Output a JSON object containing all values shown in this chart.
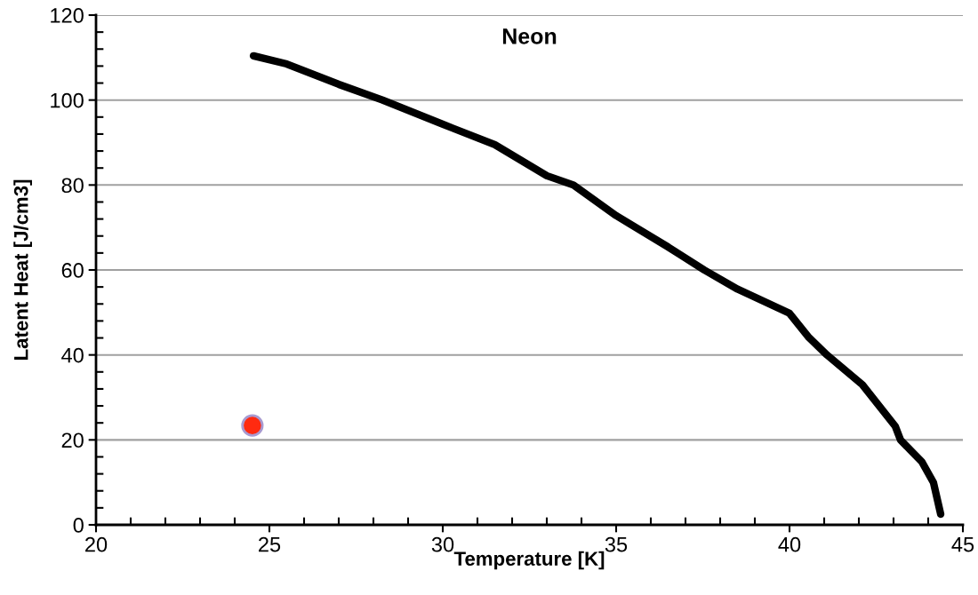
{
  "chart_data": {
    "type": "line",
    "title": "Neon",
    "xlabel": "Temperature [K]",
    "ylabel": "Latent Heat [J/cm3]",
    "xlim": [
      20,
      45
    ],
    "xticks": [
      20,
      25,
      30,
      35,
      40,
      45
    ],
    "ylim": [
      0,
      120
    ],
    "yticks": [
      0,
      20,
      40,
      60,
      80,
      100,
      120
    ],
    "grid": "y",
    "legend": false,
    "series": [
      {
        "color": "#000000",
        "marker": "none",
        "x": [
          24.54,
          25.5,
          27,
          28.26,
          30,
          31.5,
          33,
          33.77,
          35,
          36.5,
          37.54,
          38.5,
          40,
          40.56,
          41.08,
          42.1,
          43.05,
          43.2,
          43.82,
          44.15,
          44.36
        ],
        "values": [
          110.4,
          108.5,
          103.7,
          100,
          94.3,
          89.5,
          82.2,
          80,
          72.8,
          65.4,
          60,
          55.5,
          49.8,
          44.1,
          40,
          33,
          23.2,
          20,
          14.8,
          10,
          2.5
        ]
      },
      {
        "type": "scatter",
        "color": "#ff2a10",
        "marker": "circle",
        "x": [
          24.51
        ],
        "values": [
          23.4
        ]
      }
    ]
  }
}
